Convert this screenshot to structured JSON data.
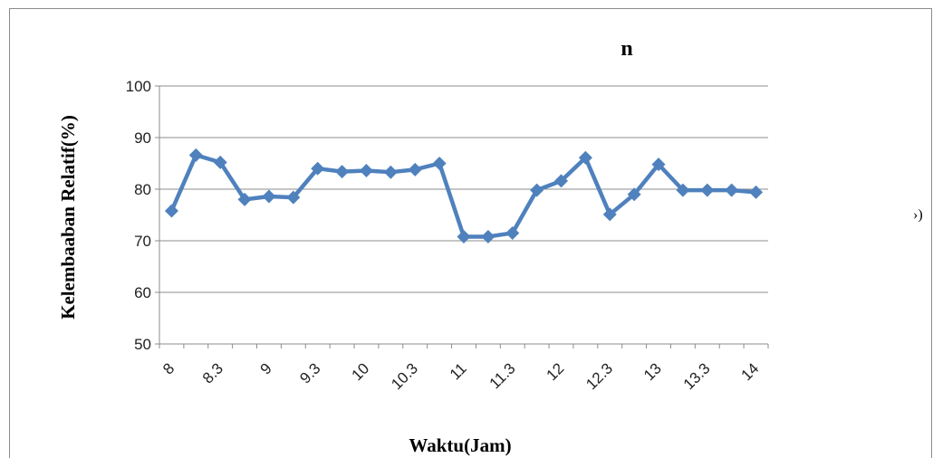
{
  "chart_data": {
    "type": "line",
    "title": "n",
    "xlabel": "Waktu(Jam)",
    "ylabel": "Kelembaaban Relatif(%)",
    "ylim": [
      50,
      100
    ],
    "yticks": [
      50,
      60,
      70,
      80,
      90,
      100
    ],
    "xtick_labels": [
      "8",
      "8.3",
      "9",
      "9.3",
      "10",
      "10.3",
      "11",
      "11.3",
      "12",
      "12.3",
      "13",
      "13.3",
      "14"
    ],
    "grid": true,
    "series": [
      {
        "color": "#4f81bd",
        "marker": "diamond",
        "values": [
          75.8,
          86.6,
          85.2,
          78.0,
          78.6,
          78.4,
          84.0,
          83.4,
          83.6,
          83.3,
          83.8,
          85.0,
          70.8,
          70.8,
          71.5,
          79.8,
          81.6,
          86.1,
          75.1,
          79.0,
          84.8,
          79.8,
          79.8,
          79.8,
          79.4
        ]
      }
    ]
  },
  "side_fragment": "›)"
}
